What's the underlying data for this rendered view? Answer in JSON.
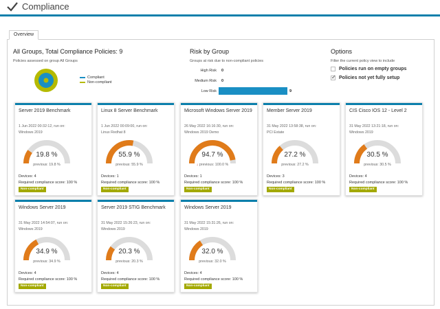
{
  "header": {
    "title": "Compliance"
  },
  "tabs": [
    {
      "label": "Overview"
    }
  ],
  "groups": {
    "title": "All Groups, Total Compliance Policies: 9",
    "subtitle": "Policies assessed on group All Groups",
    "legend": [
      {
        "label": "Compliant",
        "color": "#1a8fc4"
      },
      {
        "label": "Non-compliant",
        "color": "#b5ba00"
      }
    ]
  },
  "risk": {
    "title": "Risk by Group",
    "subtitle": "Groups at risk due to non-compliant policies",
    "rows": [
      {
        "label": "High Risk",
        "value": "0",
        "fraction": 0
      },
      {
        "label": "Medium Risk",
        "value": "0",
        "fraction": 0
      },
      {
        "label": "Low Risk",
        "value": "9",
        "fraction": 1
      }
    ]
  },
  "options": {
    "title": "Options",
    "subtitle": "Filter the current policy view to include",
    "items": [
      {
        "label": "Policies run on empty groups",
        "checked": false
      },
      {
        "label": "Policies not yet fully setup",
        "checked": true
      }
    ]
  },
  "cards": [
    {
      "title": "Server 2019 Benchmark",
      "date": "1 Jun 2022 00:32:12, run on:",
      "host": "Windows 2019",
      "pct": "19.8 %",
      "value": 19.8,
      "prev": "previous: 19.8 %",
      "devices": "Devices: 4",
      "req": "Required compliance score: 100 %",
      "badge": "Non-compliant"
    },
    {
      "title": "Linux 8 Server Benchmark",
      "date": "1 Jun 2022 00:09:00, run on:",
      "host": "Linux Redhat 8",
      "pct": "55.9 %",
      "value": 55.9,
      "prev": "previous: 55.9 %",
      "devices": "Devices: 1",
      "req": "Required compliance score: 100 %",
      "badge": "Non-compliant"
    },
    {
      "title": "Microsoft Windows Server 2019",
      "date": "26 May 2022 16:16:30, run on:",
      "host": "Windows 2019 Demo",
      "pct": "94.7 %",
      "value": 94.7,
      "prev": "previous: 100.0 %",
      "devices": "Devices: 1",
      "req": "Required compliance score: 100 %",
      "badge": "Non-compliant",
      "down": true
    },
    {
      "title": "Member Server 2019",
      "date": "31 May 2022 13:58:38, run on:",
      "host": "PCI Estate",
      "pct": "27.2 %",
      "value": 27.2,
      "prev": "previous: 27.2 %",
      "devices": "Devices: 3",
      "req": "Required compliance score: 100 %",
      "badge": "Non-compliant"
    },
    {
      "title": "CIS Cisco IOS 12 - Level 2",
      "date": "31 May 2022 13:21:18, run on:",
      "host": "Windows 2019",
      "pct": "30.5 %",
      "value": 30.5,
      "prev": "previous: 30.5 %",
      "devices": "Devices: 4",
      "req": "Required compliance score: 100 %",
      "badge": "Non-compliant"
    },
    {
      "title": "Windows Server 2019",
      "date": "31 May 2022 14:54:07, run on:",
      "host": "Windows 2019",
      "pct": "34.9 %",
      "value": 34.9,
      "prev": "previous: 34.9 %",
      "devices": "Devices: 4",
      "req": "Required compliance score: 100 %",
      "badge": "Non-compliant"
    },
    {
      "title": "Server 2019 STIG Benchmark",
      "date": "31 May 2022 15:26:23, run on:",
      "host": "Windows 2019",
      "pct": "20.3 %",
      "value": 20.3,
      "prev": "previous: 20.3 %",
      "devices": "Devices: 4",
      "req": "Required compliance score: 100 %",
      "badge": "Non-compliant"
    },
    {
      "title": "Windows Server 2019",
      "date": "31 May 2022 15:31:26, run on:",
      "host": "Windows 2019",
      "pct": "32.0 %",
      "value": 32.0,
      "prev": "previous: 32.0 %",
      "devices": "Devices: 4",
      "req": "Required compliance score: 100 %",
      "badge": "Non-compliant"
    }
  ],
  "colors": {
    "accent": "#0b7fab",
    "gauge_fill": "#e07b1a",
    "gauge_track": "#dcdcdc",
    "badge": "#a3a900"
  }
}
